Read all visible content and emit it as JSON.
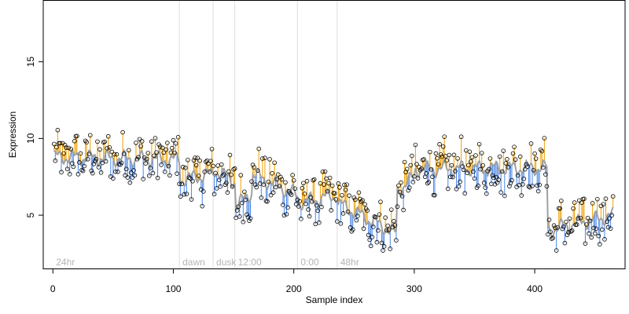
{
  "chart_data": {
    "type": "scatter",
    "title": "",
    "xlabel": "Sample index",
    "ylabel": "Expression",
    "xlim": [
      -8,
      475
    ],
    "ylim": [
      1.5,
      19
    ],
    "x_ticks": [
      0,
      100,
      200,
      300,
      400
    ],
    "y_ticks": [
      5,
      10,
      15
    ],
    "grid": false,
    "colors": {
      "points": "#000000",
      "fit": "#a0a0a0",
      "residual_above": "#f0a000",
      "residual_below": "#4a86e8",
      "phase_line": "#dcdcdc",
      "phase_label": "#b4b4b4"
    },
    "phases": [
      {
        "label": "24hr",
        "start": 0
      },
      {
        "label": "dawn",
        "start": 105
      },
      {
        "label": "dusk",
        "start": 133
      },
      {
        "label": "12:00",
        "start": 151
      },
      {
        "label": "0:00",
        "start": 203
      },
      {
        "label": "48hr",
        "start": 236
      }
    ],
    "fit_segments": [
      {
        "x": [
          1,
          105
        ],
        "y": [
          8.8,
          8.6
        ]
      },
      {
        "x": [
          105,
          133
        ],
        "y": [
          7.3,
          7.7
        ]
      },
      {
        "x": [
          133,
          151
        ],
        "y": [
          8.0,
          7.2
        ]
      },
      {
        "x": [
          151,
          165
        ],
        "y": [
          5.5,
          6.5
        ]
      },
      {
        "x": [
          165,
          203
        ],
        "y": [
          7.7,
          6.3
        ]
      },
      {
        "x": [
          203,
          236
        ],
        "y": [
          5.8,
          6.3
        ]
      },
      {
        "x": [
          236,
          285
        ],
        "y": [
          5.8,
          3.8
        ]
      },
      {
        "x": [
          285,
          300
        ],
        "y": [
          6.5,
          7.5
        ]
      },
      {
        "x": [
          300,
          410
        ],
        "y": [
          8.0,
          8.1
        ]
      },
      {
        "x": [
          410,
          465
        ],
        "y": [
          4.0,
          5.0
        ]
      }
    ],
    "points_per_sample": 1,
    "n_samples": 465
  }
}
